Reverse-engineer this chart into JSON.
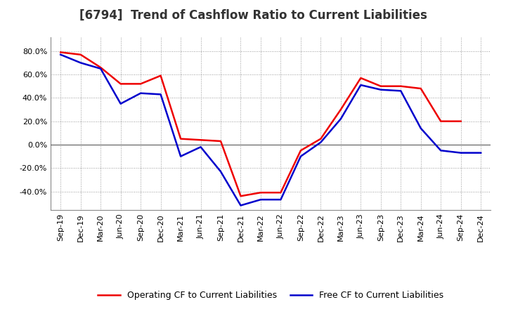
{
  "title": "[6794]  Trend of Cashflow Ratio to Current Liabilities",
  "x_labels": [
    "Sep-19",
    "Dec-19",
    "Mar-20",
    "Jun-20",
    "Sep-20",
    "Dec-20",
    "Mar-21",
    "Jun-21",
    "Sep-21",
    "Dec-21",
    "Mar-22",
    "Jun-22",
    "Sep-22",
    "Dec-22",
    "Mar-23",
    "Jun-23",
    "Sep-23",
    "Dec-23",
    "Mar-24",
    "Jun-24",
    "Sep-24",
    "Dec-24"
  ],
  "operating_cf": [
    79.0,
    77.0,
    66.0,
    52.0,
    52.0,
    59.0,
    5.0,
    4.0,
    3.0,
    -44.0,
    -41.0,
    -41.0,
    -5.0,
    5.0,
    30.0,
    57.0,
    50.0,
    50.0,
    48.0,
    20.0,
    20.0,
    null
  ],
  "free_cf": [
    77.0,
    70.0,
    65.0,
    35.0,
    44.0,
    43.0,
    -10.0,
    -2.0,
    -23.0,
    -52.0,
    -47.0,
    -47.0,
    -10.0,
    2.0,
    22.0,
    51.0,
    47.0,
    46.0,
    14.0,
    -5.0,
    -7.0,
    -7.0
  ],
  "ylim_min": -56,
  "ylim_max": 92,
  "yticks": [
    -40,
    -20,
    0,
    20,
    40,
    60,
    80
  ],
  "operating_color": "#EE0000",
  "free_color": "#0000CC",
  "background_color": "#FFFFFF",
  "grid_color": "#999999",
  "zero_line_color": "#666666",
  "legend_op": "Operating CF to Current Liabilities",
  "legend_free": "Free CF to Current Liabilities",
  "title_fontsize": 12,
  "tick_fontsize": 8,
  "legend_fontsize": 9,
  "line_width": 1.8
}
